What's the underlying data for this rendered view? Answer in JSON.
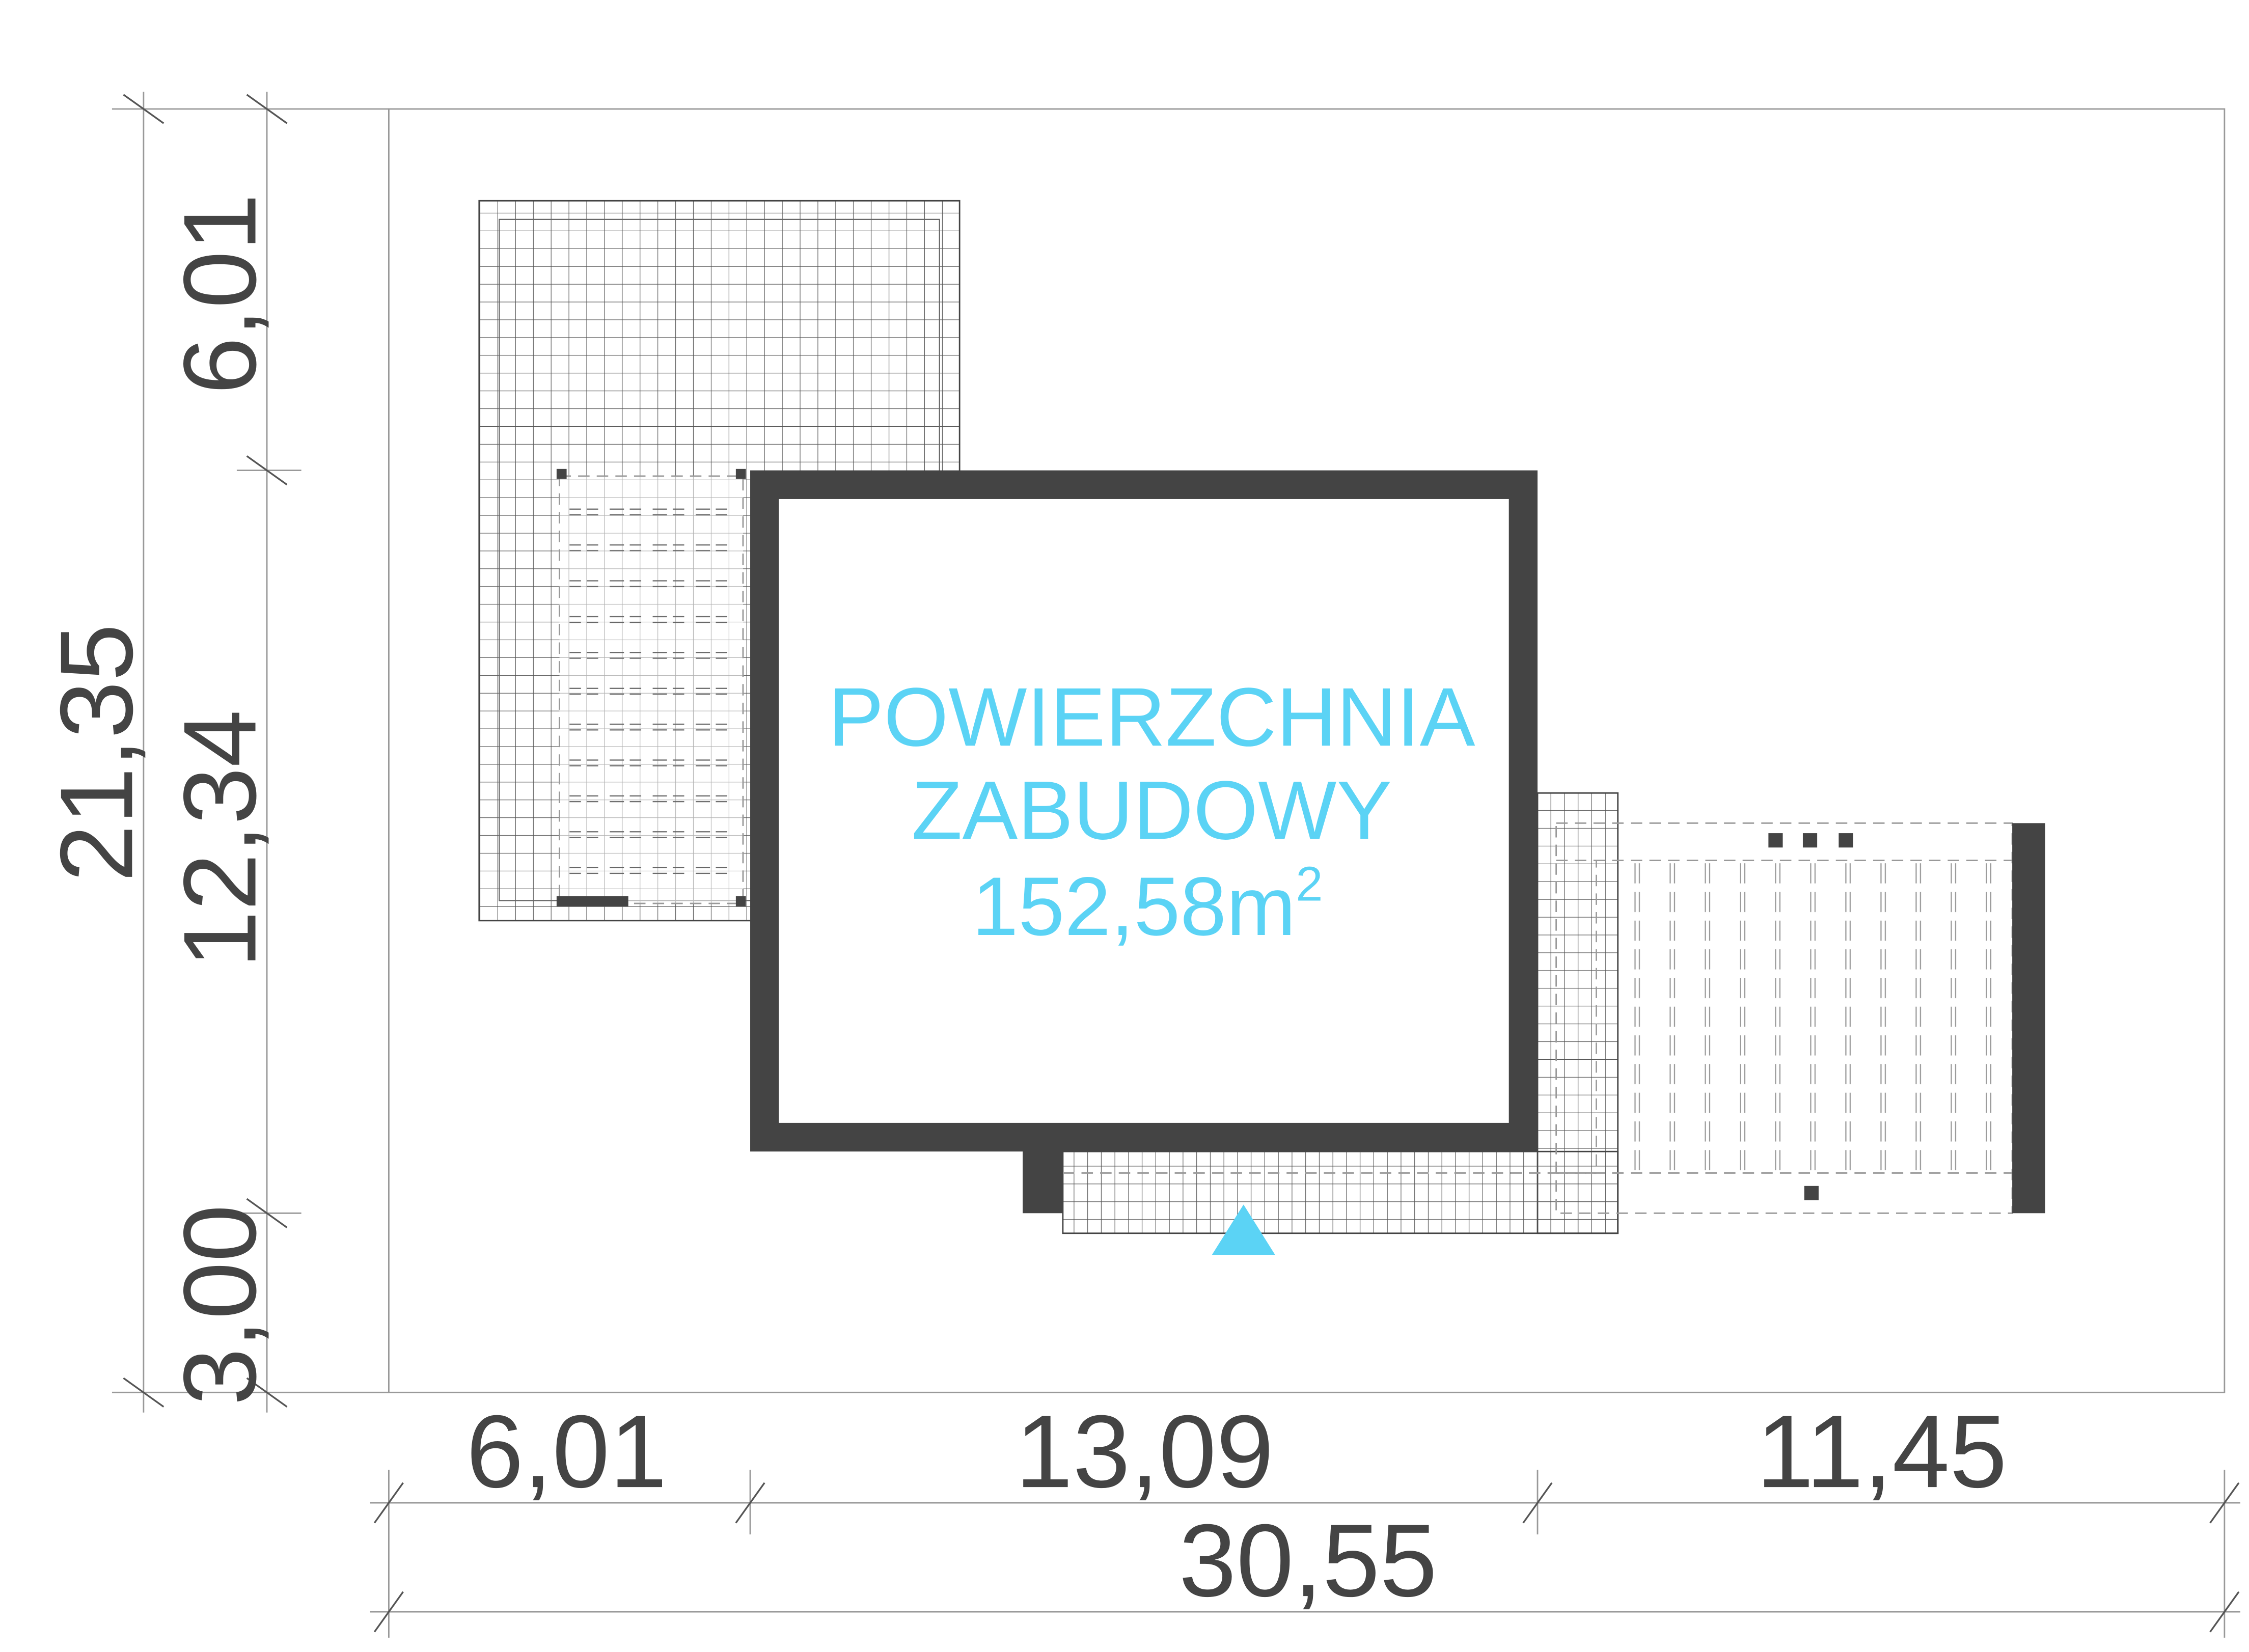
{
  "plan": {
    "label_line1": "POWIERZCHNIA",
    "label_line2": "ZABUDOWY",
    "area_value": "152,58m",
    "area_unit_sup": "2",
    "accent_color": "#5bd3f5",
    "wall_color": "#444444",
    "entrance_marker": "triangle-icon"
  },
  "dimensions": {
    "vertical_total": "21,35",
    "vertical_top": "6,01",
    "vertical_middle": "12,34",
    "vertical_bottom": "3,00",
    "horizontal_left": "6,01",
    "horizontal_middle": "13,09",
    "horizontal_right": "11,45",
    "horizontal_total": "30,55"
  }
}
